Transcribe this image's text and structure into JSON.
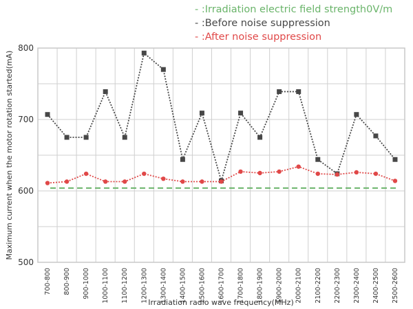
{
  "chart_data": {
    "type": "line",
    "title": "",
    "xlabel": "Irradiation radio wave frequency(MHz)",
    "ylabel": "Maximum current when the motor rotation started(mA)",
    "ylim": [
      500,
      800
    ],
    "yticks": [
      500,
      600,
      700,
      800
    ],
    "grid": true,
    "legend_position": "top-right",
    "categories": [
      "700-800",
      "800-900",
      "900-1000",
      "1000-1100",
      "1100-1200",
      "1200-1300",
      "1300-1400",
      "1400-1500",
      "1500-1600",
      "1600-1700",
      "1700-1800",
      "1800-1900",
      "1900-2000",
      "2000-2100",
      "2100-2200",
      "2200-2300",
      "2300-2400",
      "2400-2500",
      "2500-2600"
    ],
    "series": [
      {
        "name": "- :Irradiation electric field strength0V/m",
        "color": "#6ab46a",
        "style": "dashed",
        "values": [
          604,
          604,
          604,
          604,
          604,
          604,
          604,
          604,
          604,
          604,
          604,
          604,
          604,
          604,
          604,
          604,
          604,
          604,
          604
        ]
      },
      {
        "name": "- :Before noise suppression",
        "color": "#474747",
        "style": "dotted-square",
        "values": [
          707,
          675,
          675,
          739,
          675,
          793,
          770,
          644,
          709,
          614,
          709,
          675,
          739,
          739,
          644,
          624,
          707,
          677,
          644
        ]
      },
      {
        "name": "- :After noise suppression",
        "color": "#e04848",
        "style": "dotted-circle",
        "values": [
          611,
          613,
          624,
          613,
          613,
          624,
          617,
          613,
          613,
          613,
          627,
          625,
          627,
          634,
          624,
          623,
          626,
          624,
          614
        ]
      }
    ]
  }
}
